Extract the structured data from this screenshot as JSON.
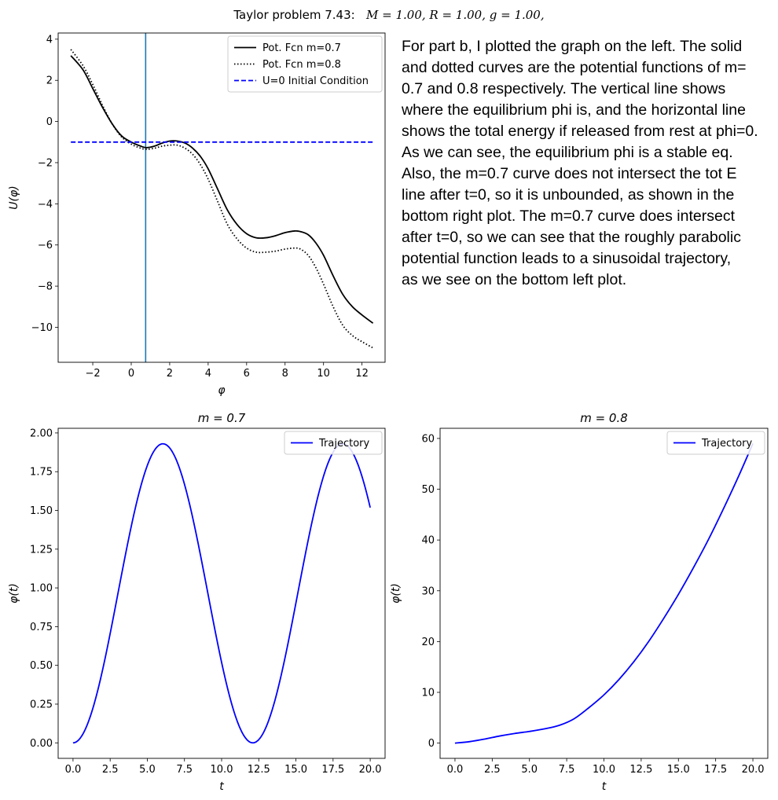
{
  "suptitle": {
    "prefix": "Taylor problem 7.43:",
    "params": "M = 1.00,  R = 1.00,  g = 1.00,"
  },
  "note_lines": [
    "For part b, I plotted the graph on the left. The solid",
    "and dotted curves are the potential functions of m=",
    "0.7 and 0.8 respectively. The vertical line shows",
    "where the equilibrium phi is, and the horizontal line",
    "shows the total energy if released from rest at phi=0.",
    "As we can see, the equilibrium phi is a stable eq.",
    "Also, the m=0.7 curve does not intersect the tot E",
    "line after t=0, so it is unbounded, as shown in the",
    "bottom right plot. The m=0.7 curve does intersect",
    "after t=0, so we can see that the roughly parabolic",
    "potential function leads to a sinusoidal trajectory,",
    "as we see on the bottom left plot."
  ],
  "chart_data": [
    {
      "id": "potential",
      "type": "line",
      "title": "",
      "xlabel": "φ",
      "ylabel": "U(φ)",
      "xlim": [
        -3.8,
        13.2
      ],
      "ylim": [
        -11.7,
        4.3
      ],
      "xticks": [
        -2,
        0,
        2,
        4,
        6,
        8,
        10,
        12
      ],
      "xtick_labels": [
        "−2",
        "0",
        "2",
        "4",
        "6",
        "8",
        "10",
        "12"
      ],
      "yticks": [
        4,
        2,
        0,
        -2,
        -4,
        -6,
        -8,
        -10
      ],
      "ytick_labels": [
        "4",
        "2",
        "0",
        "−2",
        "−4",
        "−6",
        "−8",
        "−10"
      ],
      "legend_position": "top-right",
      "series": [
        {
          "name": "Pot. Fcn m=0.7",
          "style": "solid",
          "color": "#000000",
          "x": [
            -3.14,
            -2.5,
            -2.0,
            -1.5,
            -1.0,
            -0.5,
            0.0,
            0.5,
            0.8,
            1.2,
            1.6,
            2.0,
            2.4,
            2.8,
            3.2,
            3.6,
            4.0,
            4.5,
            5.0,
            5.5,
            6.0,
            6.5,
            7.0,
            7.5,
            8.0,
            8.5,
            8.8,
            9.2,
            9.6,
            10.0,
            10.5,
            11.0,
            11.5,
            12.0,
            12.57
          ],
          "y": [
            3.2,
            2.5,
            1.6,
            0.7,
            -0.1,
            -0.7,
            -1.0,
            -1.2,
            -1.27,
            -1.2,
            -1.05,
            -0.95,
            -0.95,
            -1.05,
            -1.3,
            -1.7,
            -2.3,
            -3.3,
            -4.3,
            -5.0,
            -5.45,
            -5.65,
            -5.65,
            -5.55,
            -5.4,
            -5.32,
            -5.35,
            -5.5,
            -5.9,
            -6.5,
            -7.5,
            -8.4,
            -9.0,
            -9.4,
            -9.8
          ]
        },
        {
          "name": "Pot. Fcn m=0.8",
          "style": "dotted",
          "color": "#000000",
          "x": [
            -3.14,
            -2.5,
            -2.0,
            -1.5,
            -1.0,
            -0.5,
            0.0,
            0.5,
            0.8,
            1.2,
            1.6,
            2.0,
            2.4,
            2.8,
            3.2,
            3.6,
            4.0,
            4.5,
            5.0,
            5.5,
            6.0,
            6.5,
            7.0,
            7.5,
            8.0,
            8.5,
            8.8,
            9.2,
            9.6,
            10.0,
            10.5,
            11.0,
            11.5,
            12.0,
            12.57
          ],
          "y": [
            3.5,
            2.7,
            1.8,
            0.8,
            -0.1,
            -0.75,
            -1.1,
            -1.3,
            -1.35,
            -1.3,
            -1.2,
            -1.15,
            -1.15,
            -1.3,
            -1.6,
            -2.1,
            -2.8,
            -3.9,
            -5.0,
            -5.7,
            -6.15,
            -6.35,
            -6.35,
            -6.3,
            -6.2,
            -6.15,
            -6.2,
            -6.5,
            -7.1,
            -7.9,
            -9.0,
            -9.9,
            -10.4,
            -10.7,
            -11.0
          ]
        },
        {
          "name": "U=0 Initial Condition",
          "style": "dashed",
          "color": "#0000ff",
          "x": [
            -3.14,
            12.57
          ],
          "y": [
            -1.0,
            -1.0
          ]
        }
      ],
      "vline": {
        "x": 0.75,
        "color": "#1f77b4"
      }
    },
    {
      "id": "traj1",
      "type": "line",
      "title": "m = 0.7",
      "xlabel": "t",
      "ylabel": "φ(t)",
      "xlim": [
        -1.0,
        21.0
      ],
      "ylim": [
        -0.1,
        2.03
      ],
      "xticks": [
        0,
        2.5,
        5,
        7.5,
        10,
        12.5,
        15,
        17.5,
        20
      ],
      "xtick_labels": [
        "0.0",
        "2.5",
        "5.0",
        "7.5",
        "10.0",
        "12.5",
        "15.0",
        "17.5",
        "20.0"
      ],
      "yticks": [
        0,
        0.25,
        0.5,
        0.75,
        1.0,
        1.25,
        1.5,
        1.75,
        2.0
      ],
      "ytick_labels": [
        "0.00",
        "0.25",
        "0.50",
        "0.75",
        "1.00",
        "1.25",
        "1.50",
        "1.75",
        "2.00"
      ],
      "legend_position": "top-right",
      "series": [
        {
          "name": "Trajectory",
          "style": "solid",
          "color": "#0000ff",
          "func": "0.965*(1-cos(2*pi*t/12.1))",
          "t_range": [
            0,
            20
          ]
        }
      ]
    },
    {
      "id": "traj2",
      "type": "line",
      "title": "m = 0.8",
      "xlabel": "t",
      "ylabel": "φ(t)",
      "xlim": [
        -1.0,
        21.0
      ],
      "ylim": [
        -3.0,
        62.0
      ],
      "xticks": [
        0,
        2.5,
        5,
        7.5,
        10,
        12.5,
        15,
        17.5,
        20
      ],
      "xtick_labels": [
        "0.0",
        "2.5",
        "5.0",
        "7.5",
        "10.0",
        "12.5",
        "15.0",
        "17.5",
        "20.0"
      ],
      "yticks": [
        0,
        10,
        20,
        30,
        40,
        50,
        60
      ],
      "ytick_labels": [
        "0",
        "10",
        "20",
        "30",
        "40",
        "50",
        "60"
      ],
      "legend_position": "top-right",
      "series": [
        {
          "name": "Trajectory",
          "style": "solid",
          "color": "#0000ff",
          "x": [
            0,
            1,
            2,
            3,
            4,
            5,
            6,
            7,
            8,
            9,
            10,
            11,
            12,
            13,
            14,
            15,
            16,
            17,
            18,
            19,
            20
          ],
          "y": [
            0,
            0.3,
            0.8,
            1.4,
            1.9,
            2.3,
            2.8,
            3.5,
            4.8,
            7.0,
            9.5,
            12.5,
            16.0,
            20.0,
            24.5,
            29.3,
            34.5,
            40.0,
            46.0,
            52.3,
            59.0
          ]
        }
      ]
    }
  ]
}
